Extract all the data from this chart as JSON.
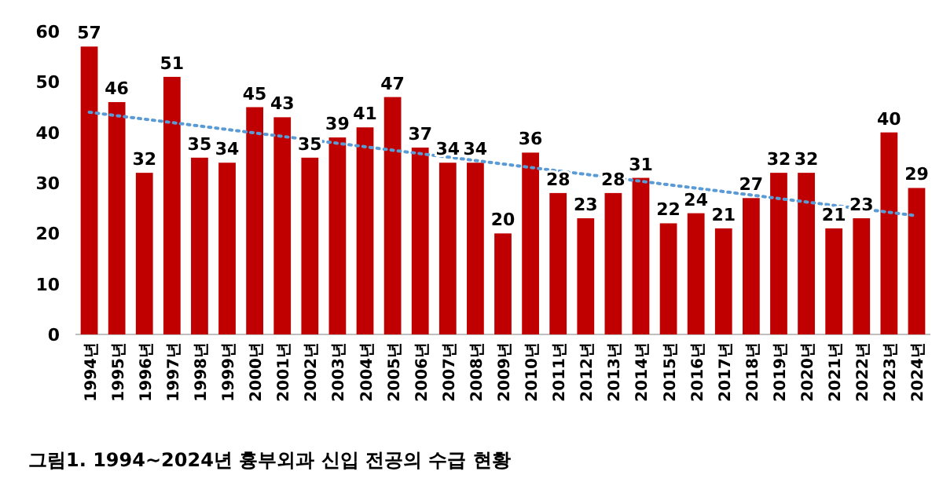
{
  "chart_data": {
    "type": "bar",
    "title": "그림1. 1994~2024년 흉부외과 신입 전공의 수급 현황",
    "categories": [
      "1994년",
      "1995년",
      "1996년",
      "1997년",
      "1998년",
      "1999년",
      "2000년",
      "2001년",
      "2002년",
      "2003년",
      "2004년",
      "2005년",
      "2006년",
      "2007년",
      "2008년",
      "2009년",
      "2010년",
      "2011년",
      "2012년",
      "2013년",
      "2014년",
      "2015년",
      "2016년",
      "2017년",
      "2018년",
      "2019년",
      "2020년",
      "2021년",
      "2022년",
      "2023년",
      "2024년"
    ],
    "series": [
      {
        "color": "#c00000",
        "values": [
          57,
          46,
          32,
          51,
          35,
          34,
          45,
          43,
          35,
          39,
          41,
          47,
          37,
          34,
          34,
          20,
          36,
          28,
          23,
          28,
          31,
          22,
          24,
          21,
          27,
          32,
          32,
          21,
          23,
          40,
          29
        ],
        "value_labels": [
          "57",
          "46",
          "32",
          "51",
          "35",
          "34",
          "45",
          "43",
          "35",
          "39",
          "41",
          "47",
          "37",
          "34",
          "34",
          "20",
          "36",
          "28",
          "23",
          "28",
          "31",
          "22",
          "24",
          "21",
          "27",
          "32",
          "32",
          "21",
          "23",
          "40",
          "29"
        ]
      },
      {
        "type": "line",
        "line_style": "dotted",
        "color": "#5b9bd5",
        "x": [
          "1994년",
          "2024년"
        ],
        "values": [
          44,
          23.5
        ]
      }
    ],
    "ylim": [
      0,
      60
    ],
    "yticks": [
      0,
      10,
      20,
      30,
      40,
      50,
      60
    ]
  }
}
